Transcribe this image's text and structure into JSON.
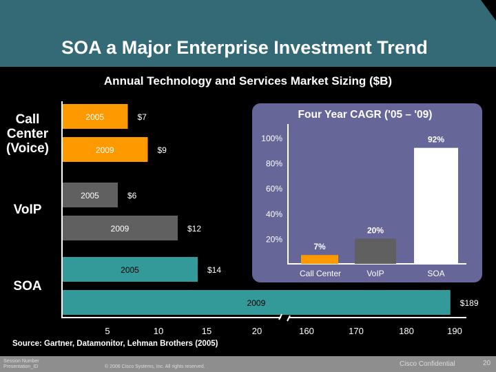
{
  "slide": {
    "title": "SOA a Major Enterprise Investment Trend",
    "subtitle": "Annual Technology and Services Market Sizing ($B)",
    "source": "Source: Gartner, Datamonitor, Lehman Brothers (2005)"
  },
  "footer": {
    "session": "Session Number",
    "presentation": "Presentation_ID",
    "copyright": "© 2006 Cisco Systems, Inc. All rights reserved.",
    "confidential": "Cisco Confidential",
    "page": "20"
  },
  "colors": {
    "header": "#336a75",
    "call_center": "#ff9900",
    "voip": "#606060",
    "soa": "#339999",
    "cagr_panel": "#666699"
  },
  "chart_data": [
    {
      "type": "bar",
      "orientation": "horizontal",
      "categories": [
        "Call Center (Voice)",
        "VoIP",
        "SOA"
      ],
      "category_labels": [
        "Call\nCenter\n(Voice)",
        "VoIP",
        "SOA"
      ],
      "bars": [
        {
          "category": "Call Center (Voice)",
          "year": "2005",
          "value": 7,
          "label": "$7"
        },
        {
          "category": "Call Center (Voice)",
          "year": "2009",
          "value": 9,
          "label": "$9"
        },
        {
          "category": "VoIP",
          "year": "2005",
          "value": 6,
          "label": "$6"
        },
        {
          "category": "VoIP",
          "year": "2009",
          "value": 12,
          "label": "$12"
        },
        {
          "category": "SOA",
          "year": "2005",
          "value": 14,
          "label": "$14"
        },
        {
          "category": "SOA",
          "year": "2009",
          "value": 189,
          "label": "$189"
        }
      ],
      "x_ticks": [
        "5",
        "10",
        "15",
        "20",
        "160",
        "170",
        "180",
        "190"
      ],
      "axis_break": [
        20,
        160
      ]
    },
    {
      "type": "bar",
      "title": "Four Year CAGR ('05 – '09)",
      "categories": [
        "Call Center",
        "VoIP",
        "SOA"
      ],
      "values": [
        7,
        20,
        92
      ],
      "value_labels": [
        "7%",
        "20%",
        "92%"
      ],
      "y_ticks": [
        "100%",
        "80%",
        "60%",
        "40%",
        "20%"
      ],
      "ylim": [
        0,
        100
      ]
    }
  ]
}
